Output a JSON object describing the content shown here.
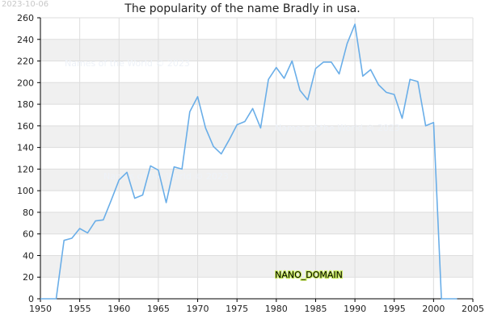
{
  "date_stamp": "2023-10-06",
  "watermarks": [
    "Names of the World © 2023",
    "Names of the World © 2023",
    "Names of the World © 2023"
  ],
  "brand": "NANO_DOMAIN",
  "colors": {
    "line": "#6aaee8",
    "band": "#f0f0f0",
    "grid": "#dddddd",
    "axis": "#000000"
  },
  "chart_data": {
    "type": "line",
    "title": "The popularity of the name Bradly in usa.",
    "xlabel": "",
    "ylabel": "",
    "xlim": [
      1950,
      2005
    ],
    "ylim": [
      0,
      260
    ],
    "x_ticks": [
      1950,
      1955,
      1960,
      1965,
      1970,
      1975,
      1980,
      1985,
      1990,
      1995,
      2000,
      2005
    ],
    "y_ticks": [
      0,
      20,
      40,
      60,
      80,
      100,
      120,
      140,
      160,
      180,
      200,
      220,
      240,
      260
    ],
    "grid": true,
    "series": [
      {
        "x": [
          1950,
          1951,
          1952,
          1953,
          1954,
          1955,
          1956,
          1957,
          1958,
          1959,
          1960,
          1961,
          1962,
          1963,
          1964,
          1965,
          1966,
          1967,
          1968,
          1969,
          1970,
          1971,
          1972,
          1973,
          1974,
          1975,
          1976,
          1977,
          1978,
          1979,
          1980,
          1981,
          1982,
          1983,
          1984,
          1985,
          1986,
          1987,
          1988,
          1989,
          1990,
          1991,
          1992,
          1993,
          1994,
          1995,
          1996,
          1997,
          1998,
          1999,
          2000,
          2001,
          2002,
          2003
        ],
        "values": [
          0,
          0,
          0,
          54,
          56,
          65,
          61,
          72,
          73,
          91,
          110,
          117,
          93,
          96,
          123,
          119,
          89,
          122,
          120,
          173,
          187,
          158,
          141,
          134,
          147,
          161,
          164,
          176,
          158,
          203,
          214,
          204,
          220,
          193,
          184,
          213,
          219,
          219,
          208,
          236,
          254,
          206,
          212,
          198,
          191,
          189,
          167,
          203,
          201,
          160,
          163,
          0,
          0,
          0
        ]
      }
    ]
  }
}
